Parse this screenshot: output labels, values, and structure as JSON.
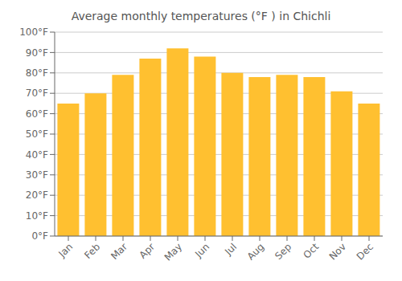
{
  "chart_data": {
    "type": "bar",
    "title": "Average monthly temperatures (°F ) in Chichli",
    "categories": [
      "Jan",
      "Feb",
      "Mar",
      "Apr",
      "May",
      "Jun",
      "Jul",
      "Aug",
      "Sep",
      "Oct",
      "Nov",
      "Dec"
    ],
    "values": [
      65,
      70,
      79,
      87,
      92,
      88,
      80,
      78,
      79,
      78,
      71,
      65
    ],
    "color": "#FFC030",
    "ylim": [
      0,
      100
    ],
    "yticks": [
      {
        "value": 0,
        "label": "0°F"
      },
      {
        "value": 10,
        "label": "10°F"
      },
      {
        "value": 20,
        "label": "20°F"
      },
      {
        "value": 30,
        "label": "30°F"
      },
      {
        "value": 40,
        "label": "40°F"
      },
      {
        "value": 50,
        "label": "50°F"
      },
      {
        "value": 60,
        "label": "60°F"
      },
      {
        "value": 70,
        "label": "70°F"
      },
      {
        "value": 80,
        "label": "80°F"
      },
      {
        "value": 90,
        "label": "90°F"
      },
      {
        "value": 100,
        "label": "100°F"
      }
    ],
    "grid": true
  }
}
